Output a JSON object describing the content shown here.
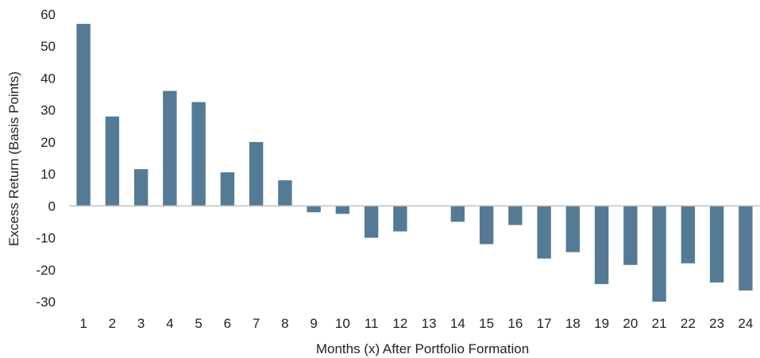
{
  "chart_data": {
    "type": "bar",
    "xlabel": "Months (x) After Portfolio Formation",
    "ylabel": "Excess Return (Basis Points)",
    "categories": [
      "1",
      "2",
      "3",
      "4",
      "5",
      "6",
      "7",
      "8",
      "9",
      "10",
      "11",
      "12",
      "13",
      "14",
      "15",
      "16",
      "17",
      "18",
      "19",
      "20",
      "21",
      "22",
      "23",
      "24"
    ],
    "values": [
      57,
      28,
      11.5,
      36,
      32.5,
      10.5,
      20,
      8,
      -2,
      -2.5,
      -10,
      -8,
      0,
      -5,
      -12,
      -6,
      -16.5,
      -14.5,
      -24.5,
      -18.5,
      -30,
      -18,
      -24,
      -26.5
    ],
    "yticks": [
      60,
      50,
      40,
      30,
      20,
      10,
      0,
      -10,
      -20,
      -30
    ],
    "ylim": [
      -30,
      60
    ],
    "grid": false,
    "legend": "none",
    "bar_color": "#557a95",
    "axis_color": "#bfbfbf"
  }
}
